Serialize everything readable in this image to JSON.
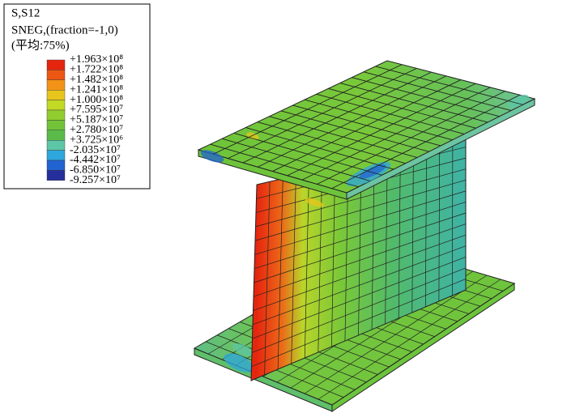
{
  "legend": {
    "title": "S,S12",
    "subtitle": "SNEG,(fraction=-1,0)",
    "average": "(平均:75%)",
    "labels": [
      "+1.963×10⁸",
      "+1.722×10⁸",
      "+1.482×10⁸",
      "+1.241×10⁸",
      "+1.000×10⁸",
      "+7.595×10⁷",
      "+5.187×10⁷",
      "+2.780×10⁷",
      "+3.725×10⁶",
      "-2.035×10⁷",
      "-4.442×10⁷",
      "-6.850×10⁷",
      "-9.257×10⁷"
    ],
    "colors": [
      "#e5260f",
      "#ec5814",
      "#f29318",
      "#e8c51c",
      "#c2d925",
      "#92cd30",
      "#72c339",
      "#5bbb4a",
      "#5cc6a6",
      "#2ea6de",
      "#2263d2",
      "#252f9c"
    ]
  }
}
